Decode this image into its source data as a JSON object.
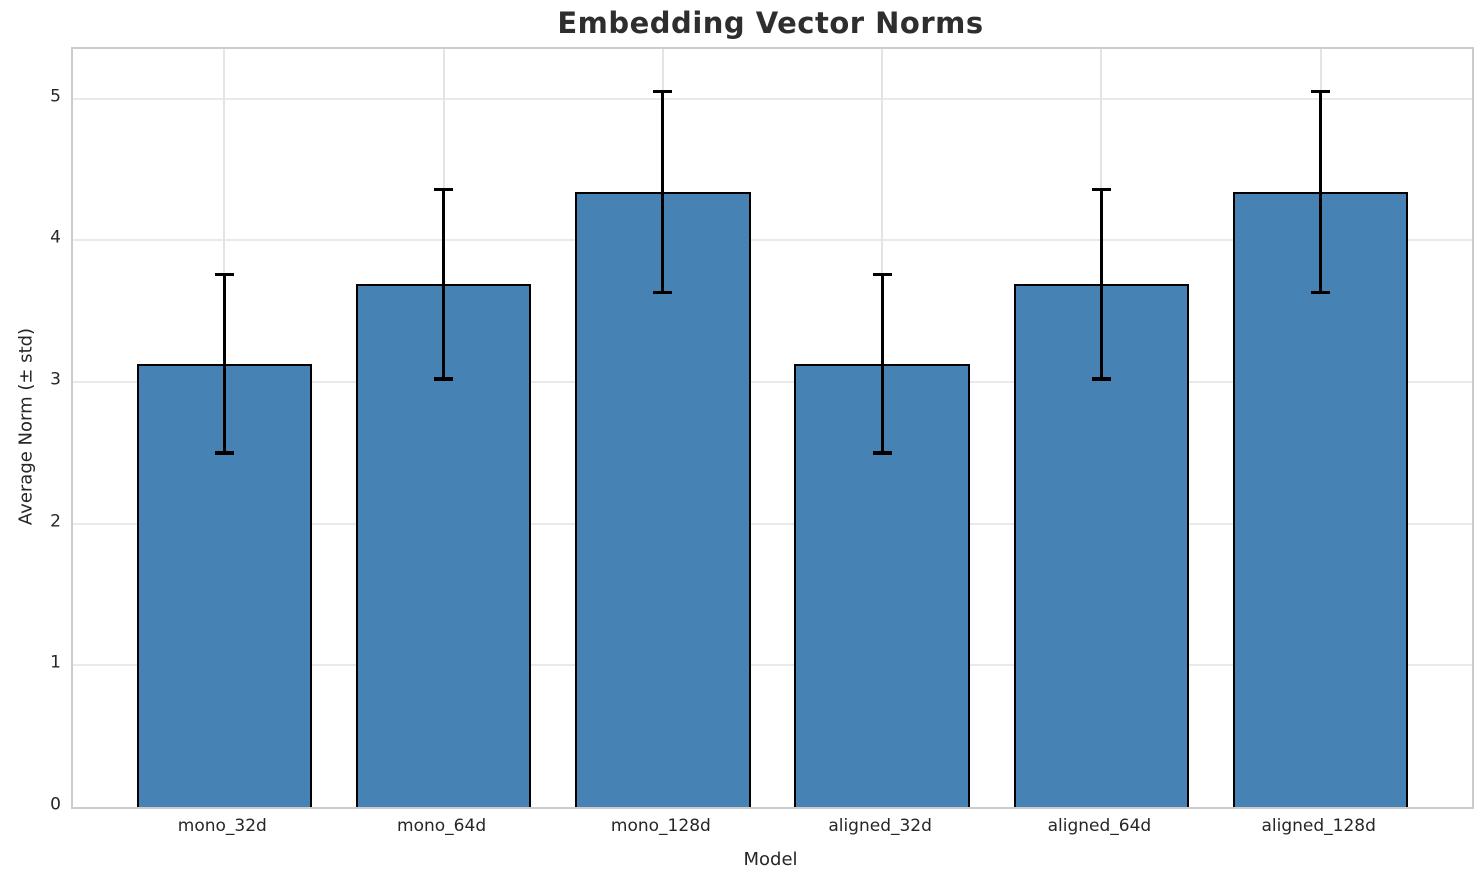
{
  "chart_data": {
    "type": "bar",
    "title": "Embedding Vector Norms",
    "xlabel": "Model",
    "ylabel": "Average Norm (± std)",
    "categories": [
      "mono_32d",
      "mono_64d",
      "mono_128d",
      "aligned_32d",
      "aligned_64d",
      "aligned_128d"
    ],
    "values": [
      3.13,
      3.69,
      4.34,
      3.13,
      3.69,
      4.34
    ],
    "errors": [
      0.63,
      0.67,
      0.71,
      0.63,
      0.67,
      0.71
    ],
    "yticks": [
      0,
      1,
      2,
      3,
      4,
      5
    ],
    "ylim": [
      0,
      5.35
    ],
    "xlim": [
      -0.69,
      5.69
    ],
    "bar_width": 0.8,
    "grid": "both",
    "legend": "none",
    "colors": {
      "bar_fill": "#4682b4",
      "bar_edge": "#000000",
      "error_bar": "#000000",
      "grid_line": "#e9e9e9",
      "spine": "#cccccc",
      "text": "#262626",
      "title_text": "#2e2e2e",
      "background": "#ffffff"
    }
  }
}
